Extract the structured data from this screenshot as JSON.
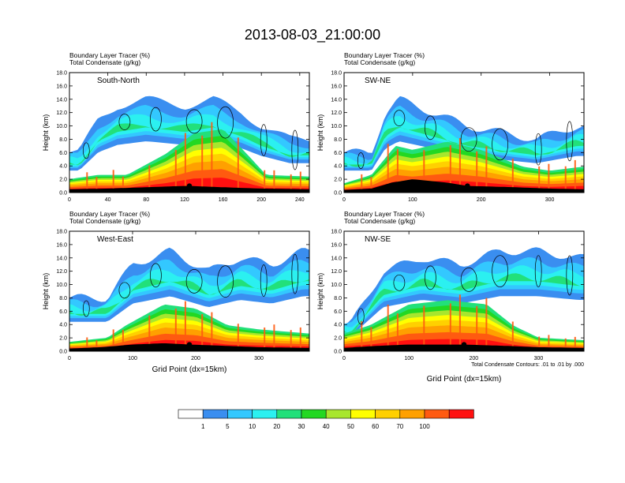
{
  "figure": {
    "title": "2013-08-03_21:00:00",
    "condensate_note": "Total Condensate Contours: .01 to .01 by .000"
  },
  "colors": {
    "levels": [
      "#ffffff",
      "#3a8ef0",
      "#33c8ff",
      "#2bf0f0",
      "#22e07a",
      "#22d822",
      "#a8e62e",
      "#ffff00",
      "#ffd000",
      "#ffa000",
      "#ff5a10",
      "#ff1010"
    ],
    "contour": "#000000",
    "ground": "#000000"
  },
  "colorbar": {
    "labels": [
      "1",
      "5",
      "10",
      "20",
      "30",
      "40",
      "50",
      "60",
      "70",
      "100"
    ]
  },
  "chart_data": [
    {
      "type": "contour",
      "panel_label": "South-North",
      "left_title_1": "Boundary Layer Tracer   (%)",
      "left_title_2": "Total Condensate   (g/kg)",
      "ylabel": "Height (km)",
      "xlabel": "",
      "xlim": [
        0,
        250
      ],
      "ylim": [
        0,
        18
      ],
      "xticks": [
        "0",
        "40",
        "80",
        "120",
        "160",
        "200",
        "240"
      ],
      "xtick_values": [
        0,
        40,
        80,
        120,
        160,
        200,
        240
      ],
      "yticks": [
        "0.0",
        "2.0",
        "4.0",
        "6.0",
        "8.0",
        "10.0",
        "12.0",
        "14.0",
        "16.0",
        "18.0"
      ],
      "ytick_values": [
        0,
        2,
        4,
        6,
        8,
        10,
        12,
        14,
        16,
        18
      ],
      "site_marker": {
        "x": 125,
        "y": 1.0
      },
      "ground_profile": [
        [
          0,
          0.5
        ],
        [
          40,
          0.6
        ],
        [
          80,
          0.8
        ],
        [
          120,
          1.0
        ],
        [
          125,
          1.0
        ],
        [
          160,
          0.8
        ],
        [
          200,
          0.6
        ],
        [
          250,
          0.5
        ]
      ],
      "plume_core": [
        [
          0,
          1.5
        ],
        [
          30,
          2.0
        ],
        [
          60,
          2.0
        ],
        [
          100,
          4.5
        ],
        [
          130,
          7.0
        ],
        [
          160,
          7.5
        ],
        [
          185,
          4.5
        ],
        [
          205,
          2.0
        ],
        [
          250,
          1.8
        ]
      ],
      "cloud_envelope": [
        [
          10,
          6
        ],
        [
          30,
          11
        ],
        [
          50,
          13
        ],
        [
          80,
          14
        ],
        [
          120,
          13
        ],
        [
          150,
          14
        ],
        [
          180,
          12
        ],
        [
          200,
          10
        ],
        [
          230,
          8
        ]
      ]
    },
    {
      "type": "contour",
      "panel_label": "SW-NE",
      "left_title_1": "Boundary Layer Tracer   (%)",
      "left_title_2": "Total Condensate   (g/kg)",
      "ylabel": "Height (km)",
      "xlabel": "",
      "xlim": [
        0,
        350
      ],
      "ylim": [
        0,
        18
      ],
      "xticks": [
        "0",
        "100",
        "200",
        "300"
      ],
      "xtick_values": [
        0,
        100,
        200,
        300
      ],
      "yticks": [
        "0.0",
        "2.0",
        "4.0",
        "6.0",
        "8.0",
        "10.0",
        "12.0",
        "14.0",
        "16.0",
        "18.0"
      ],
      "ytick_values": [
        0,
        2,
        4,
        6,
        8,
        10,
        12,
        14,
        16,
        18
      ],
      "site_marker": {
        "x": 180,
        "y": 1.0
      },
      "ground_profile": [
        [
          0,
          0.4
        ],
        [
          40,
          0.6
        ],
        [
          70,
          1.5
        ],
        [
          100,
          2.0
        ],
        [
          150,
          1.5
        ],
        [
          180,
          1.0
        ],
        [
          250,
          0.8
        ],
        [
          300,
          0.6
        ],
        [
          350,
          0.5
        ]
      ],
      "plume_core": [
        [
          0,
          1.0
        ],
        [
          40,
          2.0
        ],
        [
          75,
          5.5
        ],
        [
          100,
          5.0
        ],
        [
          150,
          6.0
        ],
        [
          200,
          5.0
        ],
        [
          260,
          3.0
        ],
        [
          300,
          2.5
        ],
        [
          350,
          3.0
        ]
      ],
      "cloud_envelope": [
        [
          40,
          6
        ],
        [
          60,
          12
        ],
        [
          80,
          14
        ],
        [
          130,
          12
        ],
        [
          180,
          10
        ],
        [
          230,
          9
        ],
        [
          280,
          8
        ],
        [
          340,
          10
        ]
      ]
    },
    {
      "type": "contour",
      "panel_label": "West-East",
      "left_title_1": "Boundary Layer Tracer   (%)",
      "left_title_2": "Total Condensate   (g/kg)",
      "ylabel": "Height (km)",
      "xlabel": "Grid Point (dx=15km)",
      "xlim": [
        0,
        380
      ],
      "ylim": [
        0,
        18
      ],
      "xticks": [
        "0",
        "100",
        "200",
        "300"
      ],
      "xtick_values": [
        0,
        100,
        200,
        300
      ],
      "yticks": [
        "0.0",
        "2.0",
        "4.0",
        "6.0",
        "8.0",
        "10.0",
        "12.0",
        "14.0",
        "16.0",
        "18.0"
      ],
      "ytick_values": [
        0,
        2,
        4,
        6,
        8,
        10,
        12,
        14,
        16,
        18
      ],
      "site_marker": {
        "x": 190,
        "y": 1.0
      },
      "ground_profile": [
        [
          0,
          0.4
        ],
        [
          50,
          0.6
        ],
        [
          100,
          1.0
        ],
        [
          150,
          1.2
        ],
        [
          190,
          1.0
        ],
        [
          250,
          0.8
        ],
        [
          300,
          0.6
        ],
        [
          380,
          0.5
        ]
      ],
      "plume_core": [
        [
          0,
          1.0
        ],
        [
          60,
          1.5
        ],
        [
          90,
          3.0
        ],
        [
          150,
          5.5
        ],
        [
          200,
          5.0
        ],
        [
          250,
          3.0
        ],
        [
          300,
          2.5
        ],
        [
          380,
          2.0
        ]
      ],
      "cloud_envelope": [
        [
          60,
          8
        ],
        [
          100,
          13
        ],
        [
          160,
          15
        ],
        [
          220,
          12
        ],
        [
          270,
          14
        ],
        [
          320,
          13
        ],
        [
          370,
          15
        ]
      ]
    },
    {
      "type": "contour",
      "panel_label": "NW-SE",
      "left_title_1": "Boundary Layer Tracer   (%)",
      "left_title_2": "Total Condensate   (g/kg)",
      "ylabel": "Height (km)",
      "xlabel": "Grid Point (dx=15km)",
      "xlim": [
        0,
        370
      ],
      "ylim": [
        0,
        18
      ],
      "xticks": [
        "0",
        "100",
        "200",
        "300"
      ],
      "xtick_values": [
        0,
        100,
        200,
        300
      ],
      "yticks": [
        "0.0",
        "2.0",
        "4.0",
        "6.0",
        "8.0",
        "10.0",
        "12.0",
        "14.0",
        "16.0",
        "18.0"
      ],
      "ytick_values": [
        0,
        2,
        4,
        6,
        8,
        10,
        12,
        14,
        16,
        18
      ],
      "site_marker": {
        "x": 185,
        "y": 1.0
      },
      "ground_profile": [
        [
          0,
          0.5
        ],
        [
          50,
          0.8
        ],
        [
          100,
          1.0
        ],
        [
          185,
          1.0
        ],
        [
          250,
          0.8
        ],
        [
          300,
          0.6
        ],
        [
          370,
          0.5
        ]
      ],
      "plume_core": [
        [
          0,
          2.0
        ],
        [
          40,
          3.0
        ],
        [
          100,
          5.5
        ],
        [
          160,
          6.0
        ],
        [
          220,
          5.5
        ],
        [
          260,
          3.0
        ],
        [
          300,
          1.5
        ],
        [
          370,
          1.2
        ]
      ],
      "cloud_envelope": [
        [
          10,
          4
        ],
        [
          60,
          12
        ],
        [
          120,
          14
        ],
        [
          180,
          13
        ],
        [
          240,
          15
        ],
        [
          300,
          15
        ],
        [
          360,
          14
        ]
      ]
    }
  ]
}
